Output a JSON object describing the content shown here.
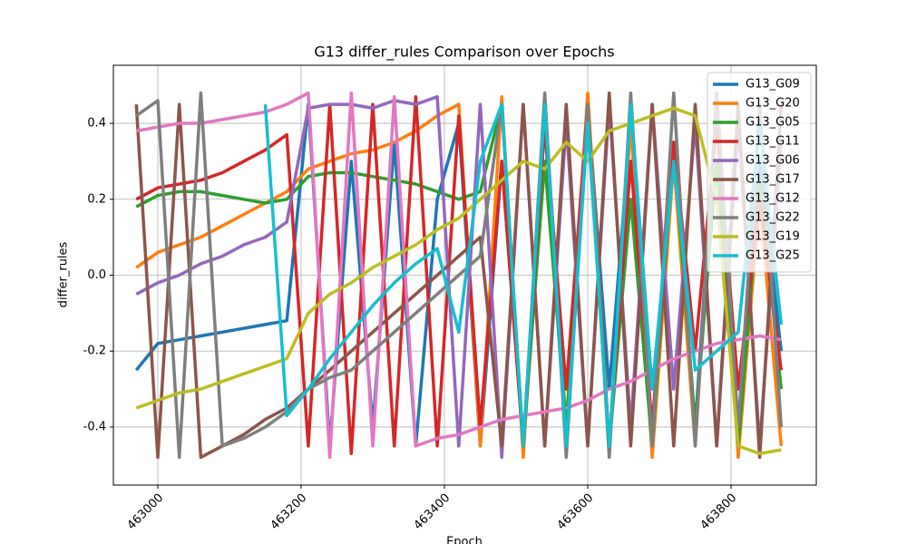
{
  "chart_data": {
    "type": "line",
    "title": "G13 differ_rules Comparison over Epochs",
    "xlabel": "Epoch",
    "ylabel": "differ_rules",
    "x": [
      462970,
      463000,
      463030,
      463060,
      463090,
      463120,
      463150,
      463180,
      463210,
      463240,
      463270,
      463300,
      463330,
      463360,
      463390,
      463420,
      463450,
      463480,
      463510,
      463540,
      463570,
      463600,
      463630,
      463660,
      463690,
      463720,
      463750,
      463780,
      463810,
      463840,
      463870
    ],
    "series": [
      {
        "name": "G13_G09",
        "color": "#1f77b4",
        "values": [
          -0.25,
          -0.18,
          -0.17,
          -0.16,
          -0.15,
          -0.14,
          -0.13,
          -0.12,
          0.45,
          -0.45,
          0.3,
          -0.4,
          0.35,
          -0.45,
          0.2,
          0.4,
          -0.45,
          0.3,
          -0.45,
          0.4,
          -0.45,
          0.45,
          -0.3,
          0.4,
          -0.45,
          0.35,
          -0.4,
          0.45,
          -0.45,
          0.3,
          -0.2
        ]
      },
      {
        "name": "G13_G20",
        "color": "#ff7f0e",
        "values": [
          0.02,
          0.06,
          0.08,
          0.1,
          0.13,
          0.16,
          0.19,
          0.22,
          0.28,
          0.3,
          0.32,
          0.33,
          0.35,
          0.38,
          0.42,
          0.45,
          -0.45,
          0.47,
          -0.48,
          0.45,
          -0.4,
          0.48,
          -0.45,
          0.4,
          -0.48,
          0.3,
          -0.45,
          0.45,
          -0.48,
          0.2,
          -0.45
        ]
      },
      {
        "name": "G13_G05",
        "color": "#2ca02c",
        "values": [
          0.18,
          0.21,
          0.22,
          0.22,
          0.21,
          0.2,
          0.19,
          0.2,
          0.26,
          0.27,
          0.27,
          0.26,
          0.25,
          0.24,
          0.22,
          0.2,
          0.22,
          0.45,
          -0.45,
          0.3,
          -0.4,
          0.45,
          -0.45,
          0.2,
          -0.45,
          0.35,
          -0.4,
          0.3,
          -0.45,
          0.25,
          -0.3
        ]
      },
      {
        "name": "G13_G11",
        "color": "#d62728",
        "values": [
          0.2,
          0.23,
          0.24,
          0.25,
          0.27,
          0.3,
          0.33,
          0.37,
          -0.45,
          0.45,
          -0.47,
          0.45,
          -0.45,
          0.47,
          -0.45,
          0.42,
          -0.4,
          0.3,
          -0.45,
          0.4,
          -0.3,
          0.45,
          -0.45,
          0.3,
          -0.4,
          0.35,
          -0.2,
          0.4,
          -0.3,
          0.2,
          -0.25
        ]
      },
      {
        "name": "G13_G06",
        "color": "#9467bd",
        "values": [
          -0.05,
          -0.02,
          0,
          0.03,
          0.05,
          0.08,
          0.1,
          0.14,
          0.44,
          0.45,
          0.45,
          0.44,
          0.46,
          0.45,
          0.47,
          -0.45,
          0.45,
          -0.48,
          0.45,
          -0.45,
          0.4,
          -0.45,
          0.45,
          -0.4,
          0.45,
          -0.3,
          0.4,
          -0.45,
          0.4,
          -0.45,
          0.35
        ]
      },
      {
        "name": "G13_G17",
        "color": "#8c564b",
        "values": [
          0.45,
          -0.48,
          0.45,
          -0.48,
          -0.45,
          -0.42,
          -0.38,
          -0.35,
          -0.3,
          -0.25,
          -0.2,
          -0.15,
          -0.1,
          -0.05,
          0,
          0.05,
          0.1,
          -0.45,
          0.45,
          -0.45,
          0.45,
          -0.45,
          0.48,
          -0.45,
          0.45,
          -0.45,
          0.45,
          -0.45,
          0.45,
          -0.48,
          0.45
        ]
      },
      {
        "name": "G13_G12",
        "color": "#e377c2",
        "values": [
          0.38,
          0.39,
          0.4,
          0.4,
          0.41,
          0.42,
          0.43,
          0.45,
          0.48,
          -0.48,
          0.48,
          -0.45,
          0.47,
          -0.45,
          -0.43,
          -0.42,
          -0.4,
          -0.38,
          -0.37,
          -0.36,
          -0.35,
          -0.33,
          -0.3,
          -0.28,
          -0.25,
          -0.22,
          -0.2,
          -0.18,
          -0.17,
          -0.16,
          -0.17
        ]
      },
      {
        "name": "G13_G22",
        "color": "#7f7f7f",
        "values": [
          0.42,
          0.46,
          -0.48,
          0.48,
          -0.45,
          -0.43,
          -0.4,
          -0.36,
          -0.3,
          -0.27,
          -0.25,
          -0.2,
          -0.15,
          -0.1,
          -0.05,
          0,
          0.05,
          0.45,
          -0.45,
          0.48,
          -0.48,
          0.45,
          -0.48,
          0.48,
          -0.45,
          0.48,
          -0.45,
          0.48,
          -0.4,
          0.45,
          -0.4
        ]
      },
      {
        "name": "G13_G19",
        "color": "#bcbd22",
        "values": [
          -0.35,
          -0.33,
          -0.31,
          -0.3,
          -0.28,
          -0.26,
          -0.24,
          -0.22,
          -0.1,
          -0.05,
          -0.02,
          0.02,
          0.05,
          0.08,
          0.12,
          0.15,
          0.2,
          0.25,
          0.3,
          0.28,
          0.35,
          0.3,
          0.38,
          0.4,
          0.42,
          0.44,
          0.42,
          0.2,
          -0.45,
          -0.47,
          -0.46
        ]
      },
      {
        "name": "G13_G25",
        "color": "#17becf",
        "values": [
          null,
          null,
          null,
          null,
          null,
          null,
          0.45,
          -0.37,
          -0.3,
          -0.22,
          -0.15,
          -0.08,
          -0.02,
          0.03,
          0.07,
          -0.15,
          0.3,
          0.45,
          -0.45,
          0.45,
          -0.45,
          0.4,
          -0.45,
          0.45,
          -0.3,
          0.3,
          -0.25,
          -0.2,
          -0.15,
          0.4,
          -0.13
        ]
      }
    ],
    "xlim": [
      462938,
      463919
    ],
    "ylim": [
      -0.553,
      0.553
    ],
    "xticks": [
      463000,
      463200,
      463400,
      463600,
      463800
    ],
    "yticks": [
      -0.4,
      -0.2,
      {
        "value": 0,
        "label": "0.0"
      },
      0.2,
      0.4
    ],
    "grid": true,
    "legend": "upper right"
  }
}
